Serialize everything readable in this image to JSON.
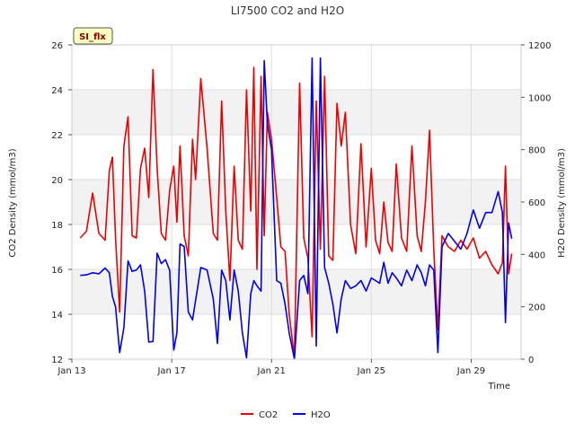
{
  "chart_data": {
    "type": "line",
    "title": "LI7500 CO2 and H2O",
    "badge": "SI_flx",
    "xlabel": "Time",
    "ylabel_left": "CO2 Density (mmol/m3)",
    "ylabel_right": "H2O Density (mmol/m3)",
    "xlim": [
      "2024-01-13",
      "2024-01-31"
    ],
    "ylim_left": [
      12,
      26
    ],
    "ylim_right": [
      0,
      1200
    ],
    "x_ticks": [
      {
        "date": "2024-01-13",
        "label": "Jan 13"
      },
      {
        "date": "2024-01-17",
        "label": "Jan 17"
      },
      {
        "date": "2024-01-21",
        "label": "Jan 21"
      },
      {
        "date": "2024-01-25",
        "label": "Jan 25"
      },
      {
        "date": "2024-01-29",
        "label": "Jan 29"
      }
    ],
    "y_ticks_left": [
      12,
      14,
      16,
      18,
      20,
      22,
      24,
      26
    ],
    "y_ticks_right": [
      0,
      200,
      400,
      600,
      800,
      1000,
      1200
    ],
    "grid": true,
    "shaded_bands_left": [
      [
        14,
        16
      ],
      [
        18,
        20
      ],
      [
        22,
        24
      ]
    ],
    "legend_position": "bottom-center",
    "series": [
      {
        "name": "CO2",
        "axis": "left",
        "color": "#ee0000",
        "points": [
          [
            "2024-01-13 08:00",
            17.4
          ],
          [
            "2024-01-13 14:00",
            17.7
          ],
          [
            "2024-01-13 20:00",
            19.4
          ],
          [
            "2024-01-14 02:00",
            17.6
          ],
          [
            "2024-01-14 08:00",
            17.3
          ],
          [
            "2024-01-14 12:00",
            20.4
          ],
          [
            "2024-01-14 15:00",
            21.0
          ],
          [
            "2024-01-14 18:00",
            17.4
          ],
          [
            "2024-01-14 22:00",
            14.1
          ],
          [
            "2024-01-15 02:00",
            21.5
          ],
          [
            "2024-01-15 06:00",
            22.8
          ],
          [
            "2024-01-15 10:00",
            17.5
          ],
          [
            "2024-01-15 14:00",
            17.4
          ],
          [
            "2024-01-15 18:00",
            20.5
          ],
          [
            "2024-01-15 22:00",
            21.4
          ],
          [
            "2024-01-16 02:00",
            19.2
          ],
          [
            "2024-01-16 06:00",
            24.9
          ],
          [
            "2024-01-16 10:00",
            20.5
          ],
          [
            "2024-01-16 14:00",
            17.6
          ],
          [
            "2024-01-16 18:00",
            17.3
          ],
          [
            "2024-01-16 22:00",
            19.5
          ],
          [
            "2024-01-17 02:00",
            20.6
          ],
          [
            "2024-01-17 05:00",
            18.1
          ],
          [
            "2024-01-17 08:00",
            21.5
          ],
          [
            "2024-01-17 12:00",
            17.5
          ],
          [
            "2024-01-17 16:00",
            16.6
          ],
          [
            "2024-01-17 20:00",
            21.8
          ],
          [
            "2024-01-17 23:00",
            20.0
          ],
          [
            "2024-01-18 04:00",
            24.5
          ],
          [
            "2024-01-18 10:00",
            21.4
          ],
          [
            "2024-01-18 16:00",
            17.6
          ],
          [
            "2024-01-18 20:00",
            17.3
          ],
          [
            "2024-01-19 00:00",
            23.5
          ],
          [
            "2024-01-19 04:00",
            18.6
          ],
          [
            "2024-01-19 08:00",
            15.5
          ],
          [
            "2024-01-19 12:00",
            20.6
          ],
          [
            "2024-01-19 16:00",
            17.3
          ],
          [
            "2024-01-19 20:00",
            16.9
          ],
          [
            "2024-01-20 00:00",
            24.0
          ],
          [
            "2024-01-20 04:00",
            18.6
          ],
          [
            "2024-01-20 07:00",
            25.0
          ],
          [
            "2024-01-20 10:00",
            16.0
          ],
          [
            "2024-01-20 14:00",
            24.6
          ],
          [
            "2024-01-20 17:00",
            17.5
          ],
          [
            "2024-01-20 20:00",
            23.0
          ],
          [
            "2024-01-21 00:00",
            21.8
          ],
          [
            "2024-01-21 05:00",
            19.2
          ],
          [
            "2024-01-21 09:00",
            17.0
          ],
          [
            "2024-01-21 13:00",
            16.8
          ],
          [
            "2024-01-21 17:00",
            14.0
          ],
          [
            "2024-01-21 22:00",
            12.1
          ],
          [
            "2024-01-22 03:00",
            24.3
          ],
          [
            "2024-01-22 07:00",
            17.4
          ],
          [
            "2024-01-22 11:00",
            16.5
          ],
          [
            "2024-01-22 15:00",
            13.0
          ],
          [
            "2024-01-22 19:00",
            23.5
          ],
          [
            "2024-01-22 23:00",
            16.9
          ],
          [
            "2024-01-23 03:00",
            24.6
          ],
          [
            "2024-01-23 07:00",
            16.6
          ],
          [
            "2024-01-23 11:00",
            16.4
          ],
          [
            "2024-01-23 15:00",
            23.4
          ],
          [
            "2024-01-23 19:00",
            21.5
          ],
          [
            "2024-01-23 23:00",
            23.0
          ],
          [
            "2024-01-24 04:00",
            18.0
          ],
          [
            "2024-01-24 09:00",
            16.7
          ],
          [
            "2024-01-24 14:00",
            21.6
          ],
          [
            "2024-01-24 19:00",
            17.0
          ],
          [
            "2024-01-25 00:00",
            20.5
          ],
          [
            "2024-01-25 04:00",
            17.3
          ],
          [
            "2024-01-25 08:00",
            16.7
          ],
          [
            "2024-01-25 12:00",
            19.0
          ],
          [
            "2024-01-25 16:00",
            17.2
          ],
          [
            "2024-01-25 20:00",
            16.8
          ],
          [
            "2024-01-26 00:00",
            20.7
          ],
          [
            "2024-01-26 05:00",
            17.4
          ],
          [
            "2024-01-26 10:00",
            16.8
          ],
          [
            "2024-01-26 15:00",
            21.5
          ],
          [
            "2024-01-26 20:00",
            17.5
          ],
          [
            "2024-01-27 00:00",
            16.8
          ],
          [
            "2024-01-27 04:00",
            19.0
          ],
          [
            "2024-01-27 08:00",
            22.2
          ],
          [
            "2024-01-27 12:00",
            16.9
          ],
          [
            "2024-01-27 16:00",
            13.3
          ],
          [
            "2024-01-27 20:00",
            17.5
          ],
          [
            "2024-01-28 02:00",
            17.0
          ],
          [
            "2024-01-28 08:00",
            16.8
          ],
          [
            "2024-01-28 14:00",
            17.3
          ],
          [
            "2024-01-28 20:00",
            16.9
          ],
          [
            "2024-01-29 02:00",
            17.4
          ],
          [
            "2024-01-29 08:00",
            16.5
          ],
          [
            "2024-01-29 14:00",
            16.8
          ],
          [
            "2024-01-29 20:00",
            16.2
          ],
          [
            "2024-01-30 02:00",
            15.8
          ],
          [
            "2024-01-30 06:00",
            16.3
          ],
          [
            "2024-01-30 09:00",
            20.6
          ],
          [
            "2024-01-30 12:00",
            15.8
          ],
          [
            "2024-01-30 15:00",
            16.7
          ]
        ]
      },
      {
        "name": "H2O",
        "axis": "right",
        "color": "#0000ee",
        "points": [
          [
            "2024-01-13 08:00",
            320
          ],
          [
            "2024-01-13 14:00",
            322
          ],
          [
            "2024-01-13 20:00",
            330
          ],
          [
            "2024-01-14 02:00",
            326
          ],
          [
            "2024-01-14 08:00",
            348
          ],
          [
            "2024-01-14 12:00",
            330
          ],
          [
            "2024-01-14 15:00",
            240
          ],
          [
            "2024-01-14 18:00",
            200
          ],
          [
            "2024-01-14 22:00",
            25
          ],
          [
            "2024-01-15 02:00",
            120
          ],
          [
            "2024-01-15 06:00",
            375
          ],
          [
            "2024-01-15 10:00",
            335
          ],
          [
            "2024-01-15 14:00",
            340
          ],
          [
            "2024-01-15 18:00",
            360
          ],
          [
            "2024-01-15 22:00",
            260
          ],
          [
            "2024-01-16 02:00",
            65
          ],
          [
            "2024-01-16 06:00",
            68
          ],
          [
            "2024-01-16 10:00",
            405
          ],
          [
            "2024-01-16 14:00",
            365
          ],
          [
            "2024-01-16 18:00",
            380
          ],
          [
            "2024-01-16 22:00",
            340
          ],
          [
            "2024-01-17 02:00",
            35
          ],
          [
            "2024-01-17 05:00",
            100
          ],
          [
            "2024-01-17 08:00",
            440
          ],
          [
            "2024-01-17 12:00",
            430
          ],
          [
            "2024-01-17 16:00",
            180
          ],
          [
            "2024-01-17 20:00",
            150
          ],
          [
            "2024-01-18 04:00",
            350
          ],
          [
            "2024-01-18 10:00",
            340
          ],
          [
            "2024-01-18 16:00",
            230
          ],
          [
            "2024-01-18 20:00",
            60
          ],
          [
            "2024-01-19 00:00",
            340
          ],
          [
            "2024-01-19 04:00",
            300
          ],
          [
            "2024-01-19 08:00",
            150
          ],
          [
            "2024-01-19 12:00",
            340
          ],
          [
            "2024-01-19 16:00",
            260
          ],
          [
            "2024-01-19 20:00",
            100
          ],
          [
            "2024-01-20 00:00",
            5
          ],
          [
            "2024-01-20 04:00",
            250
          ],
          [
            "2024-01-20 07:00",
            300
          ],
          [
            "2024-01-20 10:00",
            280
          ],
          [
            "2024-01-20 14:00",
            260
          ],
          [
            "2024-01-20 17:00",
            1140
          ],
          [
            "2024-01-20 20:00",
            900
          ],
          [
            "2024-01-21 00:00",
            800
          ],
          [
            "2024-01-21 05:00",
            300
          ],
          [
            "2024-01-21 09:00",
            290
          ],
          [
            "2024-01-21 13:00",
            210
          ],
          [
            "2024-01-21 17:00",
            100
          ],
          [
            "2024-01-21 22:00",
            0
          ],
          [
            "2024-01-22 03:00",
            300
          ],
          [
            "2024-01-22 07:00",
            320
          ],
          [
            "2024-01-22 11:00",
            250
          ],
          [
            "2024-01-22 15:00",
            1150
          ],
          [
            "2024-01-22 19:00",
            50
          ],
          [
            "2024-01-22 23:00",
            1150
          ],
          [
            "2024-01-23 03:00",
            350
          ],
          [
            "2024-01-23 07:00",
            290
          ],
          [
            "2024-01-23 11:00",
            210
          ],
          [
            "2024-01-23 15:00",
            100
          ],
          [
            "2024-01-23 19:00",
            230
          ],
          [
            "2024-01-23 23:00",
            300
          ],
          [
            "2024-01-24 04:00",
            270
          ],
          [
            "2024-01-24 09:00",
            280
          ],
          [
            "2024-01-24 14:00",
            300
          ],
          [
            "2024-01-24 19:00",
            260
          ],
          [
            "2024-01-25 00:00",
            310
          ],
          [
            "2024-01-25 04:00",
            300
          ],
          [
            "2024-01-25 08:00",
            290
          ],
          [
            "2024-01-25 12:00",
            370
          ],
          [
            "2024-01-25 16:00",
            290
          ],
          [
            "2024-01-25 20:00",
            330
          ],
          [
            "2024-01-26 00:00",
            310
          ],
          [
            "2024-01-26 05:00",
            280
          ],
          [
            "2024-01-26 10:00",
            340
          ],
          [
            "2024-01-26 15:00",
            300
          ],
          [
            "2024-01-26 20:00",
            360
          ],
          [
            "2024-01-27 00:00",
            330
          ],
          [
            "2024-01-27 04:00",
            280
          ],
          [
            "2024-01-27 08:00",
            360
          ],
          [
            "2024-01-27 12:00",
            340
          ],
          [
            "2024-01-27 16:00",
            25
          ],
          [
            "2024-01-27 20:00",
            430
          ],
          [
            "2024-01-28 02:00",
            480
          ],
          [
            "2024-01-28 08:00",
            450
          ],
          [
            "2024-01-28 14:00",
            420
          ],
          [
            "2024-01-28 20:00",
            480
          ],
          [
            "2024-01-29 02:00",
            570
          ],
          [
            "2024-01-29 08:00",
            500
          ],
          [
            "2024-01-29 14:00",
            560
          ],
          [
            "2024-01-29 20:00",
            560
          ],
          [
            "2024-01-30 02:00",
            640
          ],
          [
            "2024-01-30 06:00",
            560
          ],
          [
            "2024-01-30 09:00",
            140
          ],
          [
            "2024-01-30 12:00",
            520
          ],
          [
            "2024-01-30 15:00",
            460
          ]
        ]
      }
    ]
  }
}
